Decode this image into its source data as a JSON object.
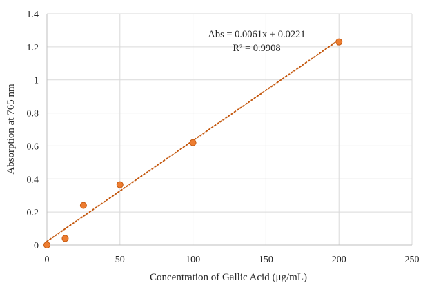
{
  "chart_data": {
    "type": "scatter",
    "xlabel": "Concentration of Gallic Acid (μg/mL)",
    "ylabel": "Absorption at 765 nm",
    "xlim": [
      0,
      250
    ],
    "ylim": [
      0,
      1.4
    ],
    "x_ticks": [
      0,
      50,
      100,
      150,
      200,
      250
    ],
    "y_ticks": [
      0,
      0.2,
      0.4,
      0.6,
      0.8,
      1,
      1.2,
      1.4
    ],
    "x_tick_labels": [
      "0",
      "50",
      "100",
      "150",
      "200",
      "250"
    ],
    "y_tick_labels": [
      "0",
      "0.2",
      "0.4",
      "0.6",
      "0.8",
      "1",
      "1.2",
      "1.4"
    ],
    "grid": true,
    "legend": "none",
    "series": [
      {
        "points": [
          {
            "x": 0,
            "y": 0.0
          },
          {
            "x": 12.5,
            "y": 0.04
          },
          {
            "x": 25,
            "y": 0.24
          },
          {
            "x": 50,
            "y": 0.365
          },
          {
            "x": 100,
            "y": 0.62
          },
          {
            "x": 200,
            "y": 1.23
          }
        ],
        "marker_color": "#ED7D31",
        "marker_edge_color": "#C55A11"
      }
    ],
    "trendline": {
      "type": "linear",
      "slope": 0.0061,
      "intercept": 0.0221,
      "x_range": [
        0,
        200
      ],
      "color": "#C55A11",
      "style": "dotted"
    },
    "annotations": {
      "equation": "Abs = 0.0061x + 0.0221",
      "r_squared": "R² = 0.9908"
    },
    "colors": {
      "grid": "#D9D9D9",
      "axis": "#BFBFBF",
      "text": "#262626"
    }
  }
}
